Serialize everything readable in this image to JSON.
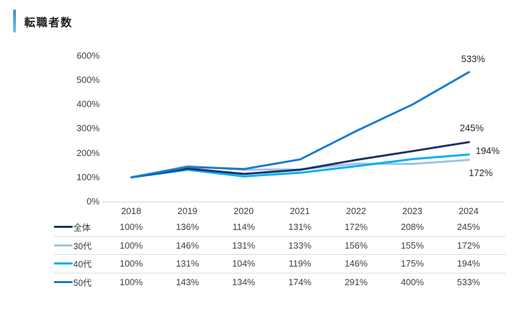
{
  "title": "転職者数",
  "accent_colors": {
    "bar_top": "#3f86d9",
    "bar_bottom": "#54cfe6"
  },
  "chart_data": {
    "type": "line",
    "x": [
      "2018",
      "2019",
      "2020",
      "2021",
      "2022",
      "2023",
      "2024"
    ],
    "series": [
      {
        "name": "全体",
        "color": "#1a3263",
        "values": [
          100,
          136,
          114,
          131,
          172,
          208,
          245
        ]
      },
      {
        "name": "30代",
        "color": "#9dc3e6",
        "values": [
          100,
          146,
          131,
          133,
          156,
          155,
          172
        ]
      },
      {
        "name": "40代",
        "color": "#00b0f0",
        "values": [
          100,
          131,
          104,
          119,
          146,
          175,
          194
        ]
      },
      {
        "name": "50代",
        "color": "#1b7bd1",
        "values": [
          100,
          143,
          134,
          174,
          291,
          400,
          533
        ]
      }
    ],
    "title": "転職者数",
    "xlabel": "",
    "ylabel": "",
    "ylim": [
      0,
      600
    ],
    "ytick_step": 100,
    "ytick_labels": [
      "0%",
      "100%",
      "200%",
      "300%",
      "400%",
      "500%",
      "600%"
    ],
    "grid": false,
    "legend_position": "table-left",
    "end_annotations": [
      "533%",
      "245%",
      "194%",
      "172%"
    ]
  },
  "y_axis_labels": [
    {
      "value": 600,
      "label": "600%"
    },
    {
      "value": 500,
      "label": "500%"
    },
    {
      "value": 400,
      "label": "400%"
    },
    {
      "value": 300,
      "label": "300%"
    },
    {
      "value": 200,
      "label": "200%"
    },
    {
      "value": 100,
      "label": "100%"
    },
    {
      "value": 0,
      "label": "0%"
    }
  ],
  "annotations": [
    {
      "text": "533%"
    },
    {
      "text": "245%"
    },
    {
      "text": "194%"
    },
    {
      "text": "172%"
    }
  ],
  "table": {
    "year_header": [
      "2018",
      "2019",
      "2020",
      "2021",
      "2022",
      "2023",
      "2024"
    ],
    "rows": [
      {
        "label": "全体",
        "color": "#1a3263",
        "values": [
          "100%",
          "136%",
          "114%",
          "131%",
          "172%",
          "208%",
          "245%"
        ]
      },
      {
        "label": "30代",
        "color": "#9dc3e6",
        "values": [
          "100%",
          "146%",
          "131%",
          "133%",
          "156%",
          "155%",
          "172%"
        ]
      },
      {
        "label": "40代",
        "color": "#00b0f0",
        "values": [
          "100%",
          "131%",
          "104%",
          "119%",
          "146%",
          "175%",
          "194%"
        ]
      },
      {
        "label": "50代",
        "color": "#1b7bd1",
        "values": [
          "100%",
          "143%",
          "134%",
          "174%",
          "291%",
          "400%",
          "533%"
        ]
      }
    ]
  }
}
